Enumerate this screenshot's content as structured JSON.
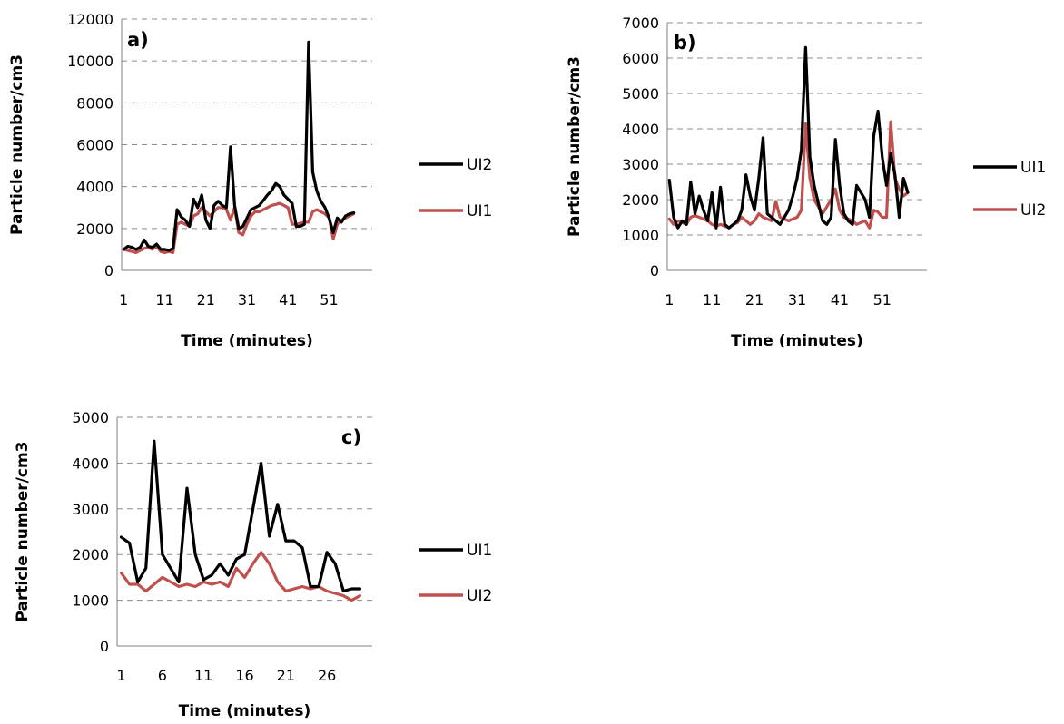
{
  "colors": {
    "black_series": "#000000",
    "red_series": "#c0504d",
    "grid": "#8c8c8c"
  },
  "chart_data": [
    {
      "type": "line",
      "panel_label": "a)",
      "xlabel": "Time (minutes)",
      "ylabel": "Particle number/cm3",
      "ylim": [
        0,
        12000
      ],
      "yticks": [
        0,
        2000,
        4000,
        6000,
        8000,
        10000,
        12000
      ],
      "xtick_labels": [
        "1",
        "11",
        "21",
        "31",
        "41",
        "51"
      ],
      "x_start": 1,
      "x_end": 61,
      "grid": "horizontal dashed",
      "legend_position": "right",
      "series": [
        {
          "name": "UI2",
          "color": "#000000",
          "values": [
            1000,
            1150,
            1100,
            1000,
            1100,
            1450,
            1150,
            1100,
            1250,
            1000,
            1000,
            950,
            1050,
            2900,
            2550,
            2400,
            2100,
            3400,
            3000,
            3600,
            2400,
            2000,
            3100,
            3300,
            3100,
            3000,
            5900,
            3100,
            2000,
            2100,
            2500,
            2900,
            3000,
            3100,
            3350,
            3600,
            3800,
            4150,
            4000,
            3600,
            3400,
            3200,
            2100,
            2100,
            2200,
            10900,
            4700,
            3800,
            3300,
            3000,
            2500,
            1800,
            2500,
            2300,
            2600,
            2700,
            2750
          ]
        },
        {
          "name": "UI1",
          "color": "#c0504d",
          "values": [
            1000,
            950,
            900,
            850,
            950,
            1050,
            1100,
            1000,
            1150,
            900,
            850,
            900,
            850,
            2200,
            2300,
            2200,
            2100,
            2600,
            2700,
            3000,
            2800,
            2600,
            2800,
            3000,
            3000,
            2900,
            2400,
            3000,
            1800,
            1700,
            2200,
            2600,
            2800,
            2800,
            2900,
            3000,
            3100,
            3150,
            3200,
            3100,
            3000,
            2200,
            2200,
            2250,
            2300,
            2300,
            2800,
            2900,
            2800,
            2700,
            2500,
            1500,
            2200,
            2400,
            2500,
            2600,
            2700
          ]
        }
      ]
    },
    {
      "type": "line",
      "panel_label": "b)",
      "xlabel": "Time (minutes)",
      "ylabel": "Particle number/cm3",
      "ylim": [
        0,
        7000
      ],
      "yticks": [
        0,
        1000,
        2000,
        3000,
        4000,
        5000,
        6000,
        7000
      ],
      "xtick_labels": [
        "1",
        "11",
        "21",
        "31",
        "41",
        "51"
      ],
      "x_start": 1,
      "x_end": 61,
      "grid": "horizontal dashed",
      "legend_position": "right",
      "series": [
        {
          "name": "UI1",
          "color": "#000000",
          "values": [
            2550,
            1500,
            1200,
            1400,
            1300,
            2500,
            1600,
            2100,
            1700,
            1400,
            2200,
            1200,
            2350,
            1300,
            1200,
            1300,
            1400,
            1700,
            2700,
            2100,
            1700,
            2600,
            3750,
            1600,
            1500,
            1400,
            1300,
            1500,
            1700,
            2100,
            2600,
            3400,
            6300,
            3200,
            2400,
            1900,
            1400,
            1300,
            1500,
            3700,
            2400,
            1600,
            1400,
            1300,
            2400,
            2200,
            2000,
            1500,
            3800,
            4500,
            3200,
            2400,
            3300,
            2700,
            1500,
            2600,
            2200
          ]
        },
        {
          "name": "UI2",
          "color": "#c0504d",
          "values": [
            1450,
            1300,
            1400,
            1350,
            1300,
            1500,
            1550,
            1500,
            1450,
            1400,
            1300,
            1250,
            1300,
            1250,
            1200,
            1300,
            1350,
            1500,
            1400,
            1300,
            1400,
            1600,
            1500,
            1450,
            1400,
            1950,
            1500,
            1450,
            1400,
            1450,
            1500,
            1700,
            4150,
            2600,
            2000,
            1800,
            1600,
            1800,
            2000,
            2300,
            1700,
            1500,
            1450,
            1400,
            1300,
            1350,
            1400,
            1200,
            1700,
            1650,
            1500,
            1500,
            4200,
            2600,
            2300,
            2100,
            2200
          ]
        }
      ]
    },
    {
      "type": "line",
      "panel_label": "c)",
      "xlabel": "Time (minutes)",
      "ylabel": "Particle number/cm3",
      "ylim": [
        0,
        5000
      ],
      "yticks": [
        0,
        1000,
        2000,
        3000,
        4000,
        5000
      ],
      "xtick_labels": [
        "1",
        "6",
        "11",
        "16",
        "21",
        "26"
      ],
      "x_start": 1,
      "x_end": 31,
      "grid": "horizontal dashed",
      "legend_position": "right",
      "series": [
        {
          "name": "UI1",
          "color": "#000000",
          "values": [
            2380,
            2250,
            1400,
            1700,
            4480,
            2000,
            1700,
            1400,
            3450,
            2000,
            1450,
            1550,
            1800,
            1550,
            1900,
            2000,
            3000,
            4000,
            2400,
            3100,
            2300,
            2300,
            2150,
            1300,
            1300,
            2050,
            1800,
            1200,
            1250,
            1250
          ]
        },
        {
          "name": "UI2",
          "color": "#c0504d",
          "values": [
            1600,
            1350,
            1350,
            1200,
            1350,
            1500,
            1400,
            1300,
            1350,
            1300,
            1400,
            1350,
            1400,
            1300,
            1700,
            1500,
            1800,
            2050,
            1800,
            1400,
            1200,
            1250,
            1300,
            1250,
            1300,
            1200,
            1150,
            1100,
            1000,
            1100
          ]
        }
      ]
    }
  ]
}
